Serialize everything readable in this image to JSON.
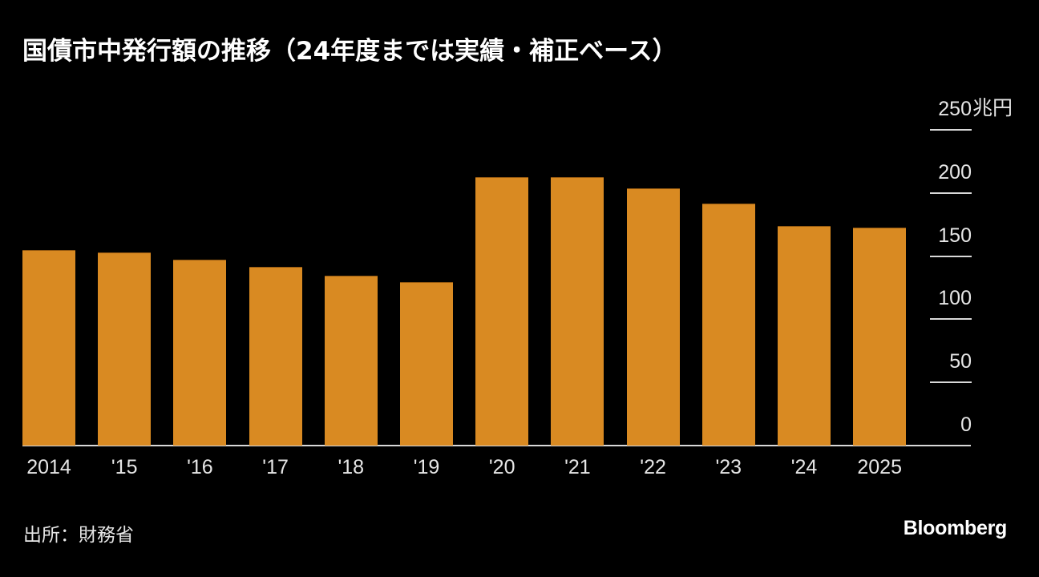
{
  "title": "国債市中発行額の推移（24年度までは実績・補正ベース）",
  "source": "出所：財務省",
  "brand": "Bloomberg",
  "colors": {
    "background": "#000000",
    "bar": "#d98a22",
    "gridline": "#d9d9d9",
    "text": "#e6e6e6"
  },
  "y_axis": {
    "ticks": [
      {
        "label": "250",
        "value": 250
      },
      {
        "label": "200",
        "value": 200
      },
      {
        "label": "150",
        "value": 150
      },
      {
        "label": "100",
        "value": 100
      },
      {
        "label": "50",
        "value": 50
      },
      {
        "label": "0",
        "value": 0
      }
    ],
    "unit": "兆円"
  },
  "x_axis": {
    "labels": [
      "2014",
      "'15",
      "'16",
      "'17",
      "'18",
      "'19",
      "'20",
      "'21",
      "'22",
      "'23",
      "'24",
      "2025"
    ]
  },
  "chart_data": {
    "type": "bar",
    "title": "国債市中発行額の推移（24年度までは実績・補正ベース）",
    "xlabel": "",
    "ylabel": "兆円",
    "categories": [
      "2014",
      "'15",
      "'16",
      "'17",
      "'18",
      "'19",
      "'20",
      "'21",
      "'22",
      "'23",
      "'24",
      "2025"
    ],
    "values": [
      154.8,
      152.7,
      147.4,
      141.7,
      134.5,
      129.6,
      212.8,
      212.8,
      203.7,
      191.8,
      173.9,
      172.8
    ],
    "ylim": [
      0,
      250
    ],
    "yticks": [
      0,
      50,
      100,
      150,
      200,
      250
    ],
    "y_axis_position": "right",
    "grid": true,
    "legend": null,
    "source": "出所：財務省"
  }
}
